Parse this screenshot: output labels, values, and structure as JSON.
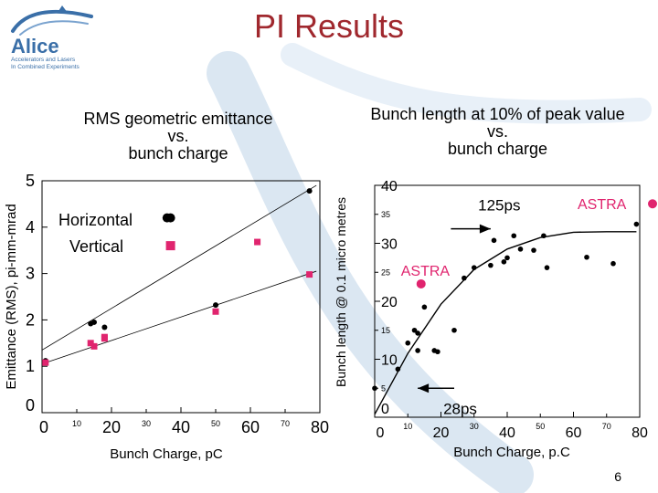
{
  "slide": {
    "title": "PI Results",
    "page_number": "6",
    "logo": {
      "name": "Alice",
      "tagline_1": "Accelerators and Lasers",
      "tagline_2": "In Combined Experiments"
    }
  },
  "colors": {
    "title": "#a0282e",
    "logo_text": "#3a6fa8",
    "swoosh": "#dbe7f2",
    "horizontal": "#000000",
    "vertical": "#e0246e",
    "astra": "#e0246e"
  },
  "chart_data": [
    {
      "type": "scatter",
      "title_lines": [
        "RMS geometric emittance",
        "vs.",
        "bunch charge"
      ],
      "xlabel": "Bunch Charge, pC",
      "ylabel": "Emittance (RMS), pi-mm-mrad",
      "xlim": [
        0,
        80
      ],
      "ylim": [
        0,
        5
      ],
      "x_ticks_major": [
        {
          "value": 0,
          "label": "0"
        },
        {
          "value": 20,
          "label": "20"
        },
        {
          "value": 40,
          "label": "40"
        },
        {
          "value": 60,
          "label": "60"
        },
        {
          "value": 80,
          "label": "80"
        }
      ],
      "x_ticks_minor": [
        {
          "value": 10,
          "label": "10"
        },
        {
          "value": 30,
          "label": "30"
        },
        {
          "value": 50,
          "label": "50"
        },
        {
          "value": 70,
          "label": "70"
        }
      ],
      "y_ticks": [
        {
          "value": 0,
          "label": "0"
        },
        {
          "value": 1,
          "label": "1"
        },
        {
          "value": 2,
          "label": "2"
        },
        {
          "value": 3,
          "label": "3"
        },
        {
          "value": 4,
          "label": "4"
        },
        {
          "value": 5,
          "label": "5"
        }
      ],
      "series": [
        {
          "name": "Horizontal",
          "marker": "circle",
          "points": [
            [
              1,
              1.12
            ],
            [
              14,
              1.92
            ],
            [
              15,
              1.95
            ],
            [
              18,
              1.84
            ],
            [
              36,
              4.2
            ],
            [
              37,
              4.2
            ],
            [
              50,
              2.32
            ],
            [
              77,
              4.78
            ]
          ]
        },
        {
          "name": "Vertical",
          "marker": "square",
          "points": [
            [
              1,
              1.08
            ],
            [
              14,
              1.5
            ],
            [
              15,
              1.43
            ],
            [
              18,
              1.63
            ],
            [
              18,
              1.6
            ],
            [
              37,
              3.6
            ],
            [
              50,
              2.18
            ],
            [
              62,
              3.68
            ],
            [
              77,
              2.98
            ]
          ]
        }
      ],
      "fit_lines": [
        {
          "series": "Horizontal",
          "from": [
            0,
            1.35
          ],
          "to": [
            79,
            4.9
          ]
        },
        {
          "series": "Vertical",
          "from": [
            0,
            1.05
          ],
          "to": [
            79,
            3.05
          ]
        }
      ],
      "legend": {
        "position": "top-left",
        "entries": [
          "Horizontal",
          "Vertical"
        ]
      }
    },
    {
      "type": "scatter",
      "title_lines": [
        "Bunch length at 10% of peak value",
        "vs.",
        "bunch charge"
      ],
      "xlabel": "Bunch Charge, p.C",
      "ylabel": "Bunch length @ 0.1 micro metres",
      "xlim": [
        0,
        80
      ],
      "ylim": [
        0,
        40
      ],
      "x_ticks_major": [
        {
          "value": 0,
          "label": "0"
        },
        {
          "value": 20,
          "label": "20"
        },
        {
          "value": 40,
          "label": "40"
        },
        {
          "value": 60,
          "label": "60"
        },
        {
          "value": 80,
          "label": "80"
        }
      ],
      "x_ticks_minor": [
        {
          "value": 10,
          "label": "10"
        },
        {
          "value": 30,
          "label": "30"
        },
        {
          "value": 50,
          "label": "50"
        },
        {
          "value": 70,
          "label": "70"
        }
      ],
      "y_ticks_major": [
        {
          "value": 0,
          "label": "0"
        },
        {
          "value": 10,
          "label": "10"
        },
        {
          "value": 20,
          "label": "20"
        },
        {
          "value": 30,
          "label": "30"
        },
        {
          "value": 40,
          "label": "40"
        }
      ],
      "y_ticks_minor": [
        {
          "value": 5,
          "label": "5"
        },
        {
          "value": 15,
          "label": "15"
        },
        {
          "value": 25,
          "label": "25"
        },
        {
          "value": 35,
          "label": "35"
        }
      ],
      "series": [
        {
          "name": "Measured",
          "marker": "circle",
          "points": [
            [
              0,
              5.0
            ],
            [
              7,
              8.3
            ],
            [
              10,
              12.8
            ],
            [
              12,
              15.0
            ],
            [
              13,
              14.5
            ],
            [
              13,
              11.5
            ],
            [
              15,
              19.0
            ],
            [
              18,
              11.5
            ],
            [
              19,
              11.3
            ],
            [
              24,
              15.0
            ],
            [
              27,
              24.0
            ],
            [
              30,
              25.8
            ],
            [
              35,
              26.2
            ],
            [
              36,
              30.5
            ],
            [
              39,
              26.8
            ],
            [
              40,
              27.5
            ],
            [
              42,
              31.3
            ],
            [
              44,
              29.0
            ],
            [
              48,
              28.8
            ],
            [
              51,
              31.3
            ],
            [
              52,
              25.8
            ],
            [
              64,
              27.6
            ],
            [
              72,
              26.5
            ],
            [
              79,
              33.3
            ]
          ]
        }
      ],
      "trend_curve": [
        [
          0,
          0.5
        ],
        [
          10,
          11
        ],
        [
          20,
          19.5
        ],
        [
          30,
          25.5
        ],
        [
          40,
          29
        ],
        [
          50,
          31
        ],
        [
          60,
          31.9
        ],
        [
          70,
          32
        ],
        [
          79,
          32
        ]
      ],
      "astra_points": [
        {
          "label": "ASTRA",
          "x": 14,
          "y": 23.0
        },
        {
          "label": "ASTRA",
          "x": 80,
          "y": 36.5
        }
      ],
      "annotations": [
        {
          "text": "125ps",
          "arrow_from": [
            23,
            32.5
          ],
          "arrow_to": [
            35,
            32.5
          ]
        },
        {
          "text": "28ps",
          "arrow_from": [
            24,
            5.0
          ],
          "arrow_to": [
            13,
            5.0
          ]
        }
      ]
    }
  ]
}
